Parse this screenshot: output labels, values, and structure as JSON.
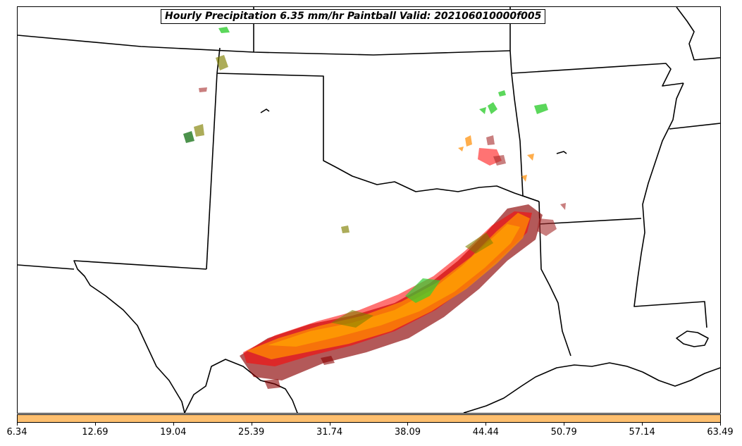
{
  "title": "Hourly Precipitation 6.35 mm/hr Paintball Valid: 202106010000f005",
  "colorbar": {
    "color": "#fdbf6f",
    "tick_labels": [
      "6.34",
      "12.69",
      "19.04",
      "25.39",
      "31.74",
      "38.09",
      "44.44",
      "50.79",
      "57.14",
      "63.49"
    ]
  },
  "member_colors": [
    "#8b0000",
    "#ff0000",
    "#ff8c00",
    "#32cd32",
    "#006400",
    "#808000",
    "#a52a2a",
    "#ffa500"
  ]
}
